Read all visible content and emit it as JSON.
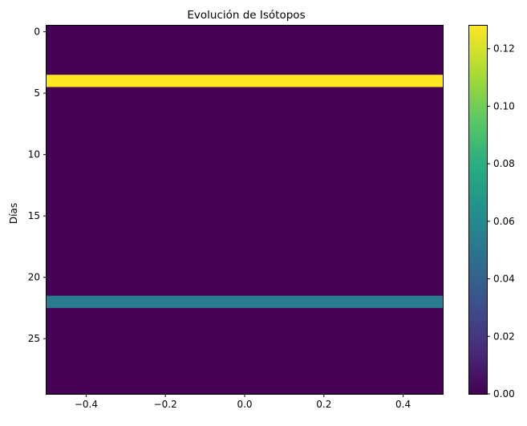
{
  "chart_data": {
    "type": "heatmap",
    "title": "Evolución de Isótopos",
    "xlabel": "",
    "ylabel": "Días",
    "x_ticks": [
      -0.4,
      -0.2,
      0.0,
      0.2,
      0.4
    ],
    "x_tick_labels": [
      "−0.4",
      "−0.2",
      "0.0",
      "0.2",
      "0.4"
    ],
    "xlim": [
      -0.5,
      0.5
    ],
    "y_ticks": [
      0,
      5,
      10,
      15,
      20,
      25
    ],
    "y_tick_labels": [
      "0",
      "5",
      "10",
      "15",
      "20",
      "25"
    ],
    "ylim": [
      29.5,
      -0.5
    ],
    "rows": 30,
    "values": [
      0,
      0,
      0,
      0,
      0.128,
      0,
      0,
      0,
      0,
      0,
      0,
      0,
      0,
      0,
      0,
      0,
      0,
      0,
      0,
      0,
      0,
      0,
      0.053,
      0,
      0,
      0,
      0,
      0,
      0,
      0
    ],
    "colorbar": {
      "vmin": 0.0,
      "vmax": 0.128,
      "ticks": [
        0.0,
        0.02,
        0.04,
        0.06,
        0.08,
        0.1,
        0.12
      ],
      "tick_labels": [
        "0.00",
        "0.02",
        "0.04",
        "0.06",
        "0.08",
        "0.10",
        "0.12"
      ],
      "colormap": "viridis"
    }
  }
}
